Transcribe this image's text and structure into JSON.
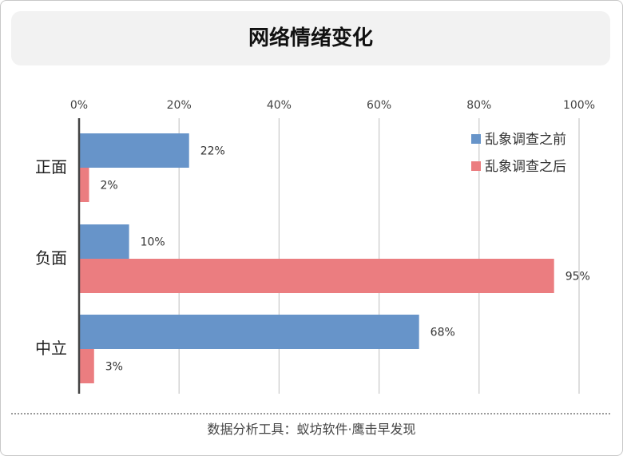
{
  "chart_data": {
    "type": "bar",
    "orientation": "horizontal",
    "title": "网络情绪变化",
    "categories": [
      "正面",
      "负面",
      "中立"
    ],
    "series": [
      {
        "name": "乱象调查之前",
        "values": [
          22,
          10,
          68
        ],
        "labels": [
          "22%",
          "10%",
          "68%"
        ],
        "color": "#6794c9"
      },
      {
        "name": "乱象调查之后",
        "values": [
          2,
          95,
          3
        ],
        "labels": [
          "2%",
          "95%",
          "3%"
        ],
        "color": "#eb7d80"
      }
    ],
    "xlim": [
      0,
      100
    ],
    "x_ticks": [
      "0%",
      "20%",
      "40%",
      "60%",
      "80%",
      "100%"
    ],
    "x_axis_position": "top",
    "grid": true,
    "legend_position": "top-right"
  },
  "footer": {
    "text": "数据分析工具：蚁坊软件·鹰击早发现"
  }
}
